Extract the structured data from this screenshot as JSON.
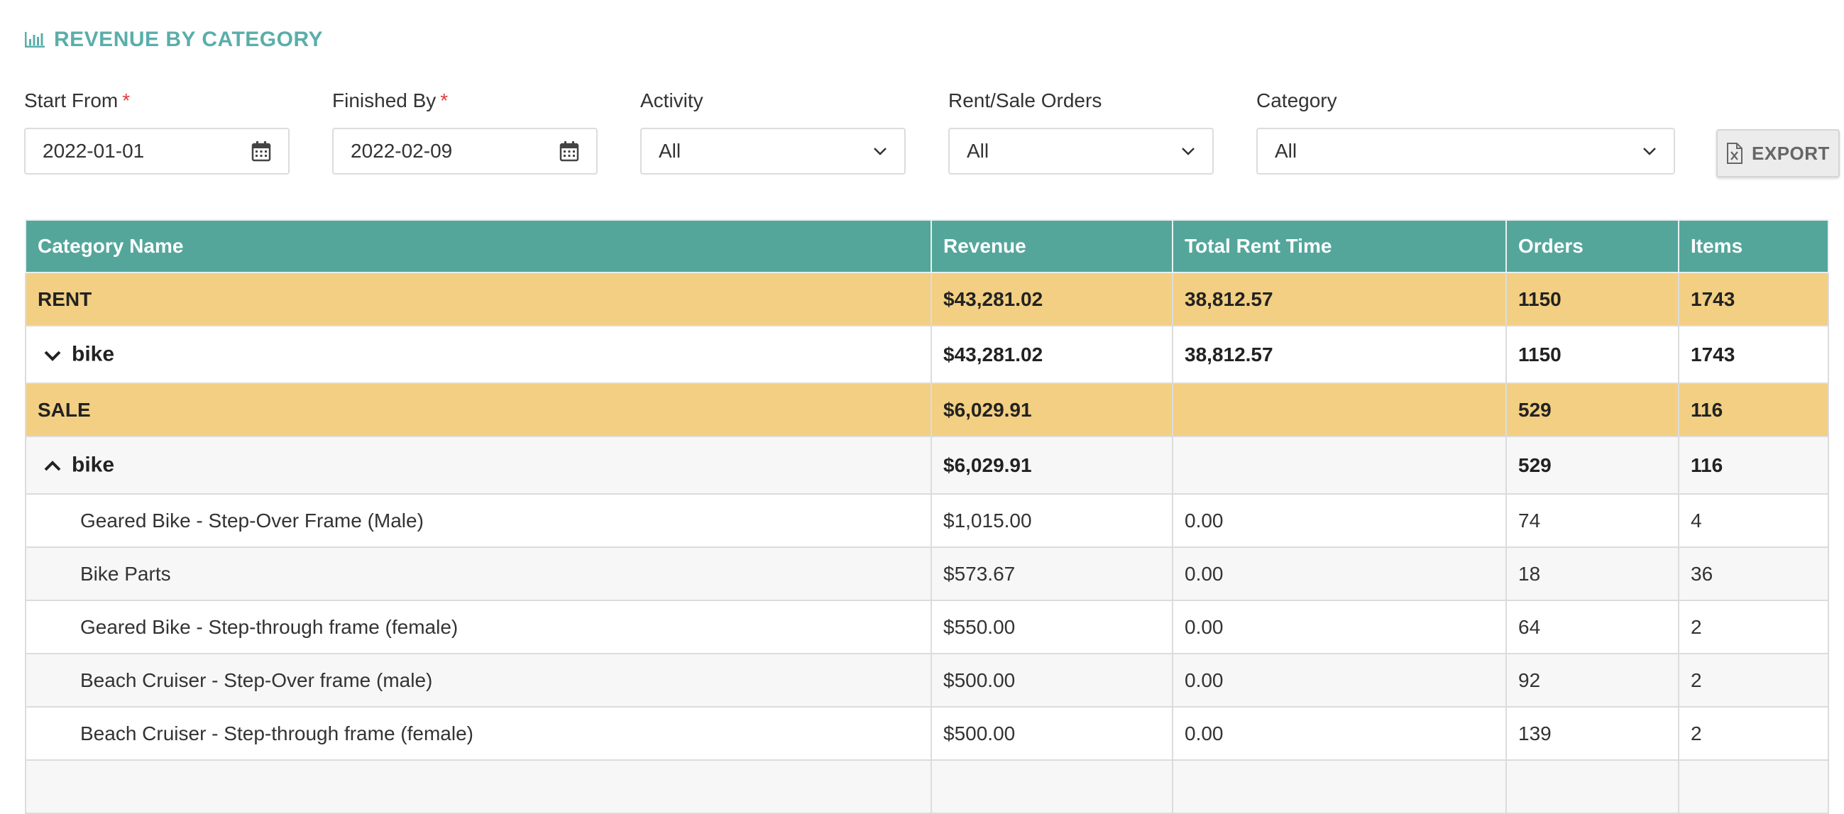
{
  "page": {
    "title": "REVENUE BY CATEGORY",
    "title_icon": "bar-chart-icon",
    "accent_color": "#5aaeaa"
  },
  "filters": {
    "start_from": {
      "label": "Start From",
      "required_mark": "*",
      "value": "2022-01-01",
      "icon": "calendar-icon"
    },
    "finished_by": {
      "label": "Finished By",
      "required_mark": "*",
      "value": "2022-02-09",
      "icon": "calendar-icon"
    },
    "activity": {
      "label": "Activity",
      "value": "All"
    },
    "rent_sale_orders": {
      "label": "Rent/Sale Orders",
      "value": "All"
    },
    "category": {
      "label": "Category",
      "value": "All"
    },
    "export": {
      "label": "EXPORT",
      "icon": "excel-file-icon"
    }
  },
  "table": {
    "header_color": "#54a69b",
    "group_row_color": "#f2cf82",
    "columns": [
      "Category Name",
      "Revenue",
      "Total Rent Time",
      "Orders",
      "Items"
    ],
    "rows": [
      {
        "kind": "group",
        "cells": [
          "RENT",
          "$43,281.02",
          "38,812.57",
          "1150",
          "1743"
        ]
      },
      {
        "kind": "sub",
        "expanded": false,
        "icon": "chevron-down-icon",
        "cells": [
          "bike",
          "$43,281.02",
          "38,812.57",
          "1150",
          "1743"
        ]
      },
      {
        "kind": "group",
        "cells": [
          "SALE",
          "$6,029.91",
          "",
          "529",
          "116"
        ]
      },
      {
        "kind": "sub",
        "expanded": true,
        "icon": "chevron-up-icon",
        "cells": [
          "bike",
          "$6,029.91",
          "",
          "529",
          "116"
        ]
      },
      {
        "kind": "item",
        "cells": [
          "Geared Bike - Step-Over Frame (Male)",
          "$1,015.00",
          "0.00",
          "74",
          "4"
        ]
      },
      {
        "kind": "item",
        "cells": [
          "Bike Parts",
          "$573.67",
          "0.00",
          "18",
          "36"
        ]
      },
      {
        "kind": "item",
        "cells": [
          "Geared Bike - Step-through frame (female)",
          "$550.00",
          "0.00",
          "64",
          "2"
        ]
      },
      {
        "kind": "item",
        "cells": [
          "Beach Cruiser - Step-Over frame (male)",
          "$500.00",
          "0.00",
          "92",
          "2"
        ]
      },
      {
        "kind": "item",
        "cells": [
          "Beach Cruiser - Step-through frame (female)",
          "$500.00",
          "0.00",
          "139",
          "2"
        ]
      },
      {
        "kind": "item",
        "cells": [
          "",
          "",
          "",
          "",
          ""
        ]
      }
    ]
  }
}
